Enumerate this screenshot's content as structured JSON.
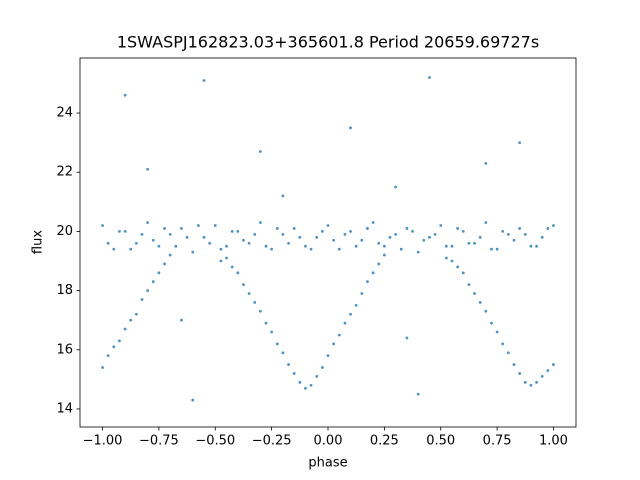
{
  "chart_data": {
    "type": "scatter",
    "title": "1SWASPJ162823.03+365601.8 Period 20659.69727s",
    "x_label": "phase",
    "y_label": "flux",
    "color": "#1f77b4",
    "xlim": [
      -1.1,
      1.1
    ],
    "ylim": [
      13.39,
      25.86
    ],
    "xticks": [
      {
        "value": -1,
        "label": "−1.00"
      },
      {
        "value": -0.75,
        "label": "−0.75"
      },
      {
        "value": -0.5,
        "label": "−0.50"
      },
      {
        "value": -0.25,
        "label": "−0.25"
      },
      {
        "value": 0,
        "label": "0.00"
      },
      {
        "value": 0.25,
        "label": "0.25"
      },
      {
        "value": 0.5,
        "label": "0.50"
      },
      {
        "value": 0.75,
        "label": "0.75"
      },
      {
        "value": 1,
        "label": "1.00"
      }
    ],
    "yticks": [
      14,
      16,
      18,
      20,
      22,
      24
    ],
    "x": [
      -1,
      -0.95,
      -0.9,
      -0.85,
      -0.8,
      -0.75,
      -0.7,
      -0.65,
      -0.6,
      -0.55,
      -0.5,
      -0.45,
      -0.4,
      -0.35,
      -0.3,
      -0.25,
      -0.2,
      -0.15,
      -0.1,
      -0.05,
      0,
      0.05,
      0.1,
      0.15,
      0.2,
      0.25,
      0.3,
      0.35,
      0.4,
      0.45,
      0.5,
      0.55,
      0.6,
      0.65,
      0.7,
      0.75,
      0.8,
      0.85,
      0.9,
      0.95,
      1,
      -0.975,
      -0.925,
      -0.875,
      -0.825,
      -0.775,
      -0.725,
      -0.675,
      -0.625,
      -0.575,
      -0.525,
      -0.475,
      -0.425,
      -0.375,
      -0.325,
      -0.275,
      -0.225,
      -0.175,
      -0.125,
      -0.075,
      -0.025,
      0.025,
      0.075,
      0.125,
      0.175,
      0.225,
      0.275,
      0.325,
      0.375,
      0.425,
      0.475,
      0.525,
      0.575,
      0.625,
      0.675,
      0.725,
      0.775,
      0.825,
      0.875,
      0.925,
      0.975,
      -1,
      -0.975,
      -0.95,
      -0.925,
      -0.9,
      -0.875,
      -0.85,
      -0.825,
      -0.8,
      -0.775,
      -0.75,
      -0.725,
      -0.7,
      -0.475,
      -0.45,
      -0.425,
      -0.4,
      -0.375,
      -0.35,
      -0.325,
      -0.3,
      -0.275,
      -0.25,
      -0.225,
      -0.2,
      -0.175,
      -0.15,
      -0.125,
      -0.1,
      -0.075,
      -0.05,
      -0.025,
      0,
      0.025,
      0.05,
      0.075,
      0.1,
      0.125,
      0.15,
      0.175,
      0.2,
      0.225,
      0.25,
      0.525,
      0.55,
      0.575,
      0.6,
      0.625,
      0.65,
      0.675,
      0.7,
      0.725,
      0.75,
      0.775,
      0.8,
      0.825,
      0.85,
      0.875,
      0.9,
      0.925,
      0.95,
      0.975,
      1,
      -0.55,
      0.45,
      -0.9,
      0.1,
      -0.3,
      0.7,
      0.3,
      -0.6,
      0.4,
      -0.2,
      0.35,
      -0.65,
      0.85,
      -0.8
    ],
    "values": [
      20.2,
      19.4,
      20.0,
      19.6,
      20.3,
      19.5,
      19.9,
      20.1,
      19.3,
      19.8,
      20.2,
      19.5,
      20.0,
      19.6,
      20.3,
      19.4,
      19.9,
      20.1,
      19.5,
      19.8,
      20.2,
      19.4,
      20.0,
      19.7,
      20.3,
      19.5,
      19.9,
      20.1,
      19.3,
      19.8,
      20.2,
      19.5,
      20.0,
      19.6,
      20.3,
      19.4,
      19.9,
      20.1,
      19.5,
      19.8,
      20.2,
      19.6,
      20.0,
      19.4,
      19.9,
      19.7,
      20.1,
      19.5,
      19.8,
      20.2,
      19.6,
      19.4,
      20.0,
      19.7,
      19.9,
      19.5,
      20.1,
      19.6,
      19.8,
      19.4,
      20.0,
      19.7,
      19.9,
      19.5,
      20.1,
      19.6,
      19.8,
      19.4,
      20.0,
      19.7,
      19.9,
      19.5,
      20.1,
      19.6,
      19.8,
      19.4,
      20.0,
      19.7,
      19.9,
      19.5,
      20.1,
      15.4,
      15.8,
      16.1,
      16.3,
      16.7,
      17.0,
      17.2,
      17.7,
      18.0,
      18.3,
      18.6,
      18.9,
      19.2,
      19.0,
      19.1,
      18.8,
      18.6,
      18.2,
      17.9,
      17.6,
      17.3,
      16.9,
      16.6,
      16.2,
      15.9,
      15.5,
      15.2,
      14.9,
      14.7,
      14.8,
      15.1,
      15.4,
      15.8,
      16.2,
      16.5,
      16.9,
      17.2,
      17.5,
      17.9,
      18.3,
      18.6,
      18.9,
      19.2,
      19.1,
      19.0,
      18.8,
      18.6,
      18.2,
      17.9,
      17.6,
      17.3,
      16.9,
      16.6,
      16.2,
      15.9,
      15.5,
      15.2,
      14.9,
      14.8,
      14.9,
      15.1,
      15.3,
      15.5,
      25.1,
      25.2,
      24.6,
      23.5,
      22.7,
      22.3,
      21.5,
      14.3,
      14.5,
      21.2,
      16.4,
      17.0,
      23.0,
      22.1
    ]
  }
}
